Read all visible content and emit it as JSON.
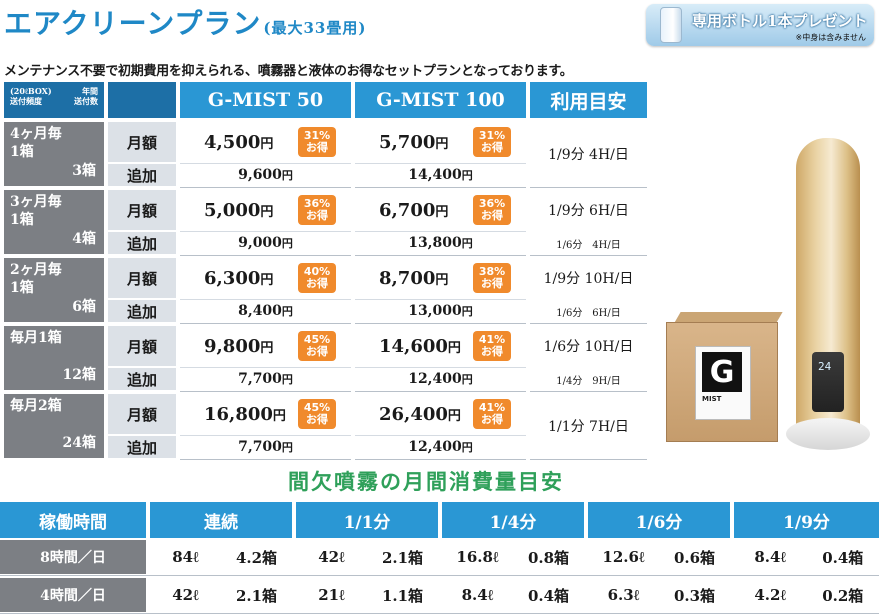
{
  "title": "エアクリーンプラン",
  "title_sub": "(最大33畳用)",
  "promo": {
    "text": "専用ボトル1本プレゼント",
    "note": "※中身は含みません"
  },
  "lead": "メンテナンス不要で初期費用を抑えられる、噴霧器と液体のお得なセットプランとなっております。",
  "corner": {
    "left": "(20ℓBOX)\n送付頻度",
    "right": "年間\n送付数"
  },
  "headers": [
    "G-MIST 50",
    "G-MIST 100",
    "利用目安"
  ],
  "sub_labels": {
    "monthly": "月額",
    "extra": "追加"
  },
  "yen": "円",
  "plans": [
    {
      "freq": "4ヶ月毎\n1箱",
      "count": "3箱",
      "m50": "4,500",
      "d50": "31%",
      "m100": "5,700",
      "d100": "31%",
      "a50": "9,600",
      "a100": "14,400",
      "use1": "1/9分 4H/日",
      "use2": ""
    },
    {
      "freq": "3ヶ月毎\n1箱",
      "count": "4箱",
      "m50": "5,000",
      "d50": "36%",
      "m100": "6,700",
      "d100": "36%",
      "a50": "9,000",
      "a100": "13,800",
      "use1": "1/9分 6H/日",
      "use2": "1/6分　4H/日"
    },
    {
      "freq": "2ヶ月毎\n1箱",
      "count": "6箱",
      "m50": "6,300",
      "d50": "40%",
      "m100": "8,700",
      "d100": "38%",
      "a50": "8,400",
      "a100": "13,000",
      "use1": "1/9分 10H/日",
      "use2": "1/6分　6H/日"
    },
    {
      "freq": "毎月1箱",
      "count": "12箱",
      "m50": "9,800",
      "d50": "45%",
      "m100": "14,600",
      "d100": "41%",
      "a50": "7,700",
      "a100": "12,400",
      "use1": "1/6分 10H/日",
      "use2": "1/4分　9H/日"
    },
    {
      "freq": "毎月2箱",
      "count": "24箱",
      "m50": "16,800",
      "d50": "45%",
      "m100": "26,400",
      "d100": "41%",
      "a50": "7,700",
      "a100": "12,400",
      "use1": "1/1分 7H/日",
      "use2": ""
    }
  ],
  "discount_suffix": "お得",
  "box_label": {
    "logo": "G",
    "text": "MIST"
  },
  "tower_display": "24",
  "sub_title": "間欠噴霧の月間消費量目安",
  "bottom": {
    "headers": [
      "稼働時間",
      "連続",
      "1/1分",
      "1/4分",
      "1/6分",
      "1/9分"
    ],
    "rows": [
      {
        "label": "8時間／日",
        "vals": [
          "84ℓ",
          "4.2箱",
          "42ℓ",
          "2.1箱",
          "16.8ℓ",
          "0.8箱",
          "12.6ℓ",
          "0.6箱",
          "8.4ℓ",
          "0.4箱"
        ]
      },
      {
        "label": "4時間／日",
        "vals": [
          "42ℓ",
          "2.1箱",
          "21ℓ",
          "1.1箱",
          "8.4ℓ",
          "0.4箱",
          "6.3ℓ",
          "0.3箱",
          "4.2ℓ",
          "0.2箱"
        ]
      }
    ]
  }
}
